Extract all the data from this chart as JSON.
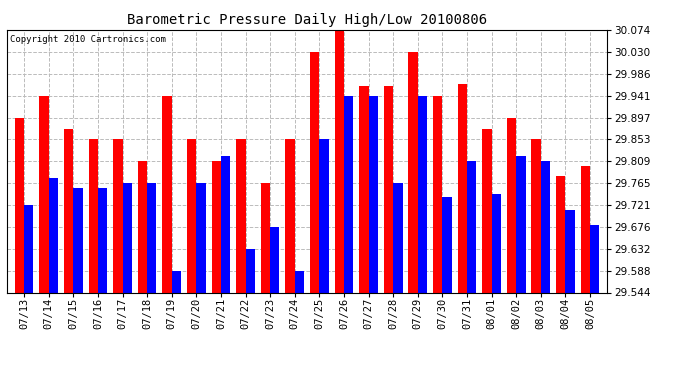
{
  "title": "Barometric Pressure Daily High/Low 20100806",
  "copyright": "Copyright 2010 Cartronics.com",
  "dates": [
    "07/13",
    "07/14",
    "07/15",
    "07/16",
    "07/17",
    "07/18",
    "07/19",
    "07/20",
    "07/21",
    "07/22",
    "07/23",
    "07/24",
    "07/25",
    "07/26",
    "07/27",
    "07/28",
    "07/29",
    "07/30",
    "07/31",
    "08/01",
    "08/02",
    "08/03",
    "08/04",
    "08/05"
  ],
  "highs": [
    29.897,
    29.941,
    29.875,
    29.853,
    29.853,
    29.809,
    29.941,
    29.853,
    29.809,
    29.853,
    29.765,
    29.853,
    30.03,
    30.074,
    29.96,
    29.96,
    30.03,
    29.941,
    29.965,
    29.875,
    29.897,
    29.853,
    29.78,
    29.8
  ],
  "lows": [
    29.721,
    29.776,
    29.754,
    29.754,
    29.765,
    29.765,
    29.588,
    29.765,
    29.82,
    29.632,
    29.676,
    29.588,
    29.853,
    29.941,
    29.941,
    29.765,
    29.941,
    29.737,
    29.809,
    29.743,
    29.82,
    29.809,
    29.71,
    29.68
  ],
  "high_color": "#ff0000",
  "low_color": "#0000ff",
  "bg_color": "#ffffff",
  "grid_color": "#bbbbbb",
  "ymin": 29.544,
  "ymax": 30.074,
  "yticks": [
    29.544,
    29.588,
    29.632,
    29.676,
    29.721,
    29.765,
    29.809,
    29.853,
    29.897,
    29.941,
    29.986,
    30.03,
    30.074
  ]
}
